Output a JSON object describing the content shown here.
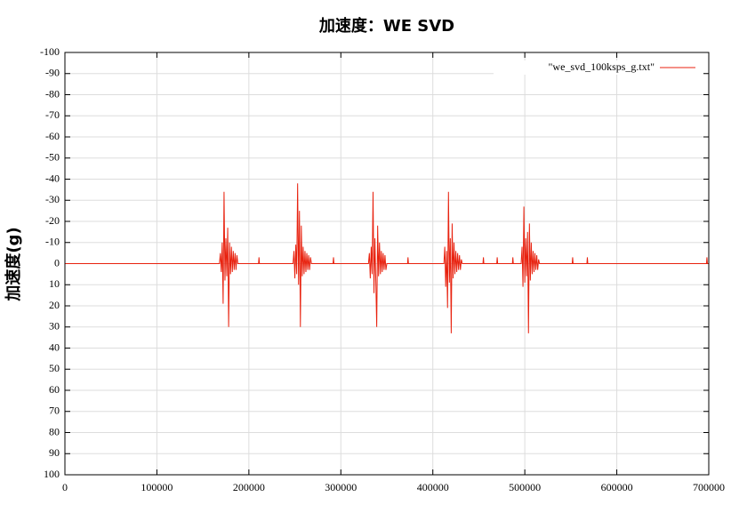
{
  "chart_data": {
    "type": "line",
    "title": "加速度：WE SVD",
    "y_label": "加速度(g)",
    "x": [
      0,
      168000,
      169000,
      170000,
      171000,
      172000,
      173000,
      174000,
      175000,
      176000,
      177000,
      178000,
      179000,
      180000,
      181000,
      182000,
      183000,
      184000,
      185000,
      186000,
      187000,
      188000,
      210500,
      211000,
      211500,
      248000,
      249000,
      250000,
      251000,
      252000,
      253000,
      254000,
      255000,
      256000,
      257000,
      258000,
      259000,
      260000,
      261000,
      262000,
      263000,
      264000,
      265000,
      266000,
      267000,
      268000,
      291500,
      292000,
      292500,
      330000,
      331000,
      332000,
      333000,
      334000,
      335000,
      336000,
      337000,
      338000,
      339000,
      340000,
      341000,
      342000,
      343000,
      344000,
      345000,
      346000,
      347000,
      348000,
      349000,
      350000,
      372500,
      373000,
      373500,
      412000,
      413000,
      414000,
      415000,
      416000,
      417000,
      418000,
      419000,
      420000,
      421000,
      422000,
      423000,
      424000,
      425000,
      426000,
      427000,
      428000,
      429000,
      430000,
      431000,
      432000,
      454500,
      455000,
      455500,
      469500,
      470000,
      470500,
      486500,
      487000,
      487500,
      496000,
      497000,
      498000,
      499000,
      500000,
      501000,
      502000,
      503000,
      504000,
      505000,
      506000,
      507000,
      508000,
      509000,
      510000,
      511000,
      512000,
      513000,
      514000,
      515000,
      516000,
      551500,
      552000,
      552500,
      567500,
      568000,
      568500,
      697500,
      698000,
      698500,
      700000
    ],
    "series": [
      {
        "name": "\"we_svd_100ksps_g.txt\"",
        "color": "#e8220f",
        "values": [
          0,
          0,
          -5,
          4,
          -10,
          19,
          -34,
          8,
          -12,
          6,
          -17,
          30,
          -10,
          5,
          -8,
          4,
          -6,
          3,
          -5,
          3,
          -4,
          0,
          0,
          -3,
          0,
          0,
          -6,
          7,
          -9,
          5,
          -38,
          10,
          -25,
          30,
          -18,
          6,
          -8,
          5,
          -6,
          4,
          -5,
          3,
          -4,
          3,
          -3,
          0,
          0,
          -3,
          0,
          0,
          -5,
          7,
          -8,
          5,
          -34,
          14,
          -12,
          8,
          30,
          -18,
          6,
          -10,
          5,
          -6,
          4,
          -5,
          3,
          -4,
          3,
          0,
          0,
          -3,
          0,
          0,
          -8,
          11,
          -6,
          21,
          -34,
          9,
          -12,
          33,
          -19,
          7,
          -10,
          5,
          -6,
          4,
          -5,
          3,
          -4,
          3,
          -2,
          0,
          0,
          -3,
          0,
          0,
          -3,
          0,
          0,
          -3,
          0,
          0,
          -8,
          11,
          -27,
          9,
          -12,
          6,
          -15,
          33,
          -19,
          8,
          -10,
          5,
          -6,
          4,
          -5,
          3,
          -4,
          3,
          -2,
          0,
          0,
          -3,
          0,
          0,
          -3,
          0,
          0,
          -3,
          0,
          0
        ]
      }
    ],
    "xlim": [
      0,
      700000
    ],
    "xticks": [
      0,
      100000,
      200000,
      300000,
      400000,
      500000,
      600000,
      700000
    ],
    "ylim": [
      -100,
      100
    ],
    "y_reversed": true,
    "yticks": [
      -100,
      -90,
      -80,
      -70,
      -60,
      -50,
      -40,
      -30,
      -20,
      -10,
      0,
      10,
      20,
      30,
      40,
      50,
      60,
      70,
      80,
      90,
      100
    ],
    "grid": true,
    "legend": "top-right"
  }
}
